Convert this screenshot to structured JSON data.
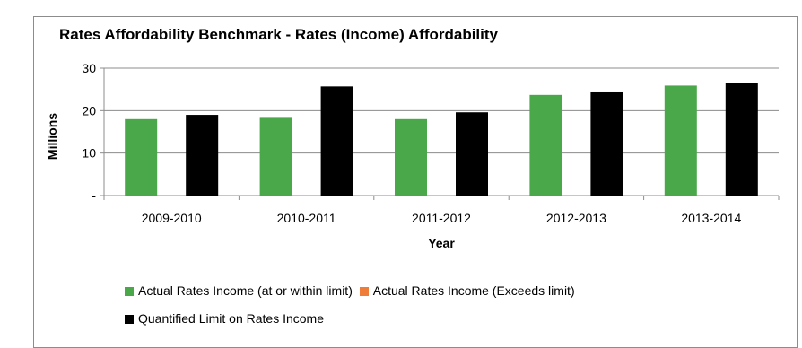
{
  "chart_data": {
    "type": "bar",
    "title": "Rates Affordability Benchmark - Rates (Income) Affordability",
    "xlabel": "Year",
    "ylabel": "Millions",
    "ylim": [
      0,
      30
    ],
    "yticks": [
      {
        "value": 0,
        "label": "-"
      },
      {
        "value": 10,
        "label": "10"
      },
      {
        "value": 20,
        "label": "20"
      },
      {
        "value": 30,
        "label": "30"
      }
    ],
    "categories": [
      "2009-2010",
      "2010-2011",
      "2011-2012",
      "2012-2013",
      "2013-2014"
    ],
    "series": [
      {
        "name": "Actual Rates Income (at or within limit)",
        "color": "#4aa84a",
        "values": [
          18.0,
          18.3,
          18.0,
          23.7,
          25.9
        ]
      },
      {
        "name": "Actual Rates Income (Exceeds limit)",
        "color": "#f07c3a",
        "values": [
          0,
          0,
          0,
          0,
          0
        ]
      },
      {
        "name": "Quantified Limit on Rates Income",
        "color": "#000000",
        "values": [
          19.0,
          25.7,
          19.6,
          24.3,
          26.6
        ]
      }
    ],
    "grid": true,
    "legend": "bottom"
  }
}
